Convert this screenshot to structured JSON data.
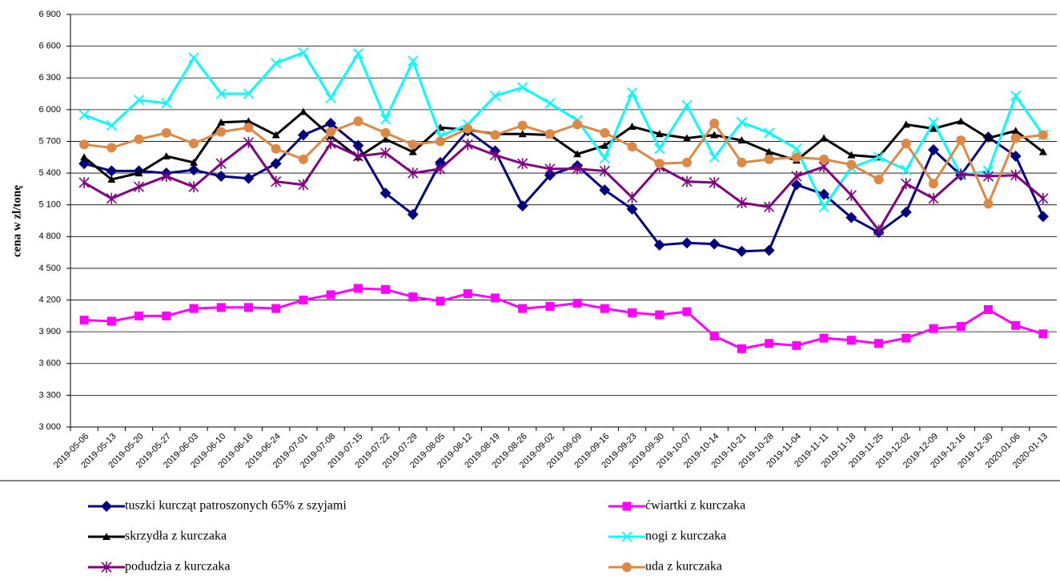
{
  "chart_data": {
    "type": "line",
    "y_label": "cena w zl/tonę",
    "categories": [
      "2019-05-06",
      "2019-05-13",
      "2019-05-20",
      "2019-05-27",
      "2019-06-03",
      "2019-06-10",
      "2019-06-16",
      "2019-06-24",
      "2019-07-01",
      "2019-07-08",
      "2019-07-15",
      "2019-07-22",
      "2019-07-29",
      "2019-08-05",
      "2019-08-12",
      "2019-08-19",
      "2019-08-26",
      "2019-09-02",
      "2019-09-09",
      "2019-09-16",
      "2019-09-23",
      "2019-09-30",
      "2019-10-07",
      "2019-10-14",
      "2019-10-21",
      "2019-10-28",
      "2019-11-04",
      "2019-11-11",
      "2019-11-18",
      "2019-11-25",
      "2019-12-02",
      "2019-12-09",
      "2019-12-16",
      "2019-12-30",
      "2020-01-06",
      "2020-01-13"
    ],
    "series": [
      {
        "name": "tuszki kurcząt patroszonych 65% z szyjami",
        "color": "#000080",
        "marker": "diamond",
        "values": [
          5490,
          5420,
          5420,
          5400,
          5430,
          5370,
          5350,
          5490,
          5760,
          5870,
          5660,
          5210,
          5010,
          5500,
          5800,
          5610,
          5090,
          5380,
          5470,
          5240,
          5060,
          4720,
          4740,
          4730,
          4660,
          4670,
          5290,
          5200,
          4980,
          4840,
          5030,
          5620,
          5380,
          5740,
          5560,
          4990
        ]
      },
      {
        "name": "ćwiartki z kurczaka",
        "color": "#ff00ff",
        "marker": "square",
        "values": [
          4010,
          4000,
          4050,
          4050,
          4120,
          4130,
          4130,
          4120,
          4200,
          4250,
          4310,
          4300,
          4230,
          4190,
          4260,
          4220,
          4120,
          4140,
          4170,
          4120,
          4080,
          4060,
          4090,
          3860,
          3740,
          3790,
          3770,
          3840,
          3820,
          3790,
          3840,
          3930,
          3950,
          4110,
          3960,
          3880
        ]
      },
      {
        "name": "skrzydła z kurczaka",
        "color": "#000000",
        "marker": "triangle",
        "values": [
          5550,
          5340,
          5400,
          5560,
          5500,
          5880,
          5890,
          5760,
          5980,
          5750,
          5550,
          5720,
          5600,
          5830,
          5810,
          5770,
          5770,
          5760,
          5580,
          5660,
          5840,
          5770,
          5730,
          5760,
          5710,
          5600,
          5520,
          5730,
          5570,
          5550,
          5860,
          5820,
          5890,
          5730,
          5800,
          5600
        ]
      },
      {
        "name": "nogi z kurczaka",
        "color": "#00ffff",
        "marker": "x",
        "values": [
          5950,
          5850,
          6090,
          6060,
          6490,
          6150,
          6150,
          6440,
          6540,
          6110,
          6530,
          5910,
          6460,
          5750,
          5860,
          6130,
          6210,
          6060,
          5900,
          5540,
          6160,
          5630,
          6040,
          5550,
          5880,
          5780,
          5630,
          5080,
          5450,
          5550,
          5430,
          5880,
          5380,
          5420,
          6130,
          5760
        ]
      },
      {
        "name": "podudzia z kurczaka",
        "color": "#800080",
        "marker": "star",
        "values": [
          5310,
          5160,
          5270,
          5370,
          5270,
          5490,
          5690,
          5320,
          5290,
          5680,
          5560,
          5590,
          5400,
          5440,
          5670,
          5570,
          5490,
          5440,
          5440,
          5420,
          5170,
          5460,
          5320,
          5310,
          5120,
          5080,
          5370,
          5460,
          5190,
          4860,
          5300,
          5160,
          5390,
          5370,
          5380,
          5160
        ]
      },
      {
        "name": "uda z kurczaka",
        "color": "#dd8844",
        "marker": "circle",
        "values": [
          5670,
          5640,
          5720,
          5780,
          5680,
          5790,
          5830,
          5630,
          5530,
          5790,
          5890,
          5780,
          5670,
          5700,
          5820,
          5760,
          5850,
          5770,
          5860,
          5780,
          5650,
          5490,
          5500,
          5870,
          5500,
          5530,
          5550,
          5530,
          5480,
          5340,
          5680,
          5300,
          5710,
          5110,
          5730,
          5760
        ]
      }
    ],
    "ylim": [
      3000,
      6900
    ],
    "yticks": [
      {
        "value": 3000,
        "label": "3 000"
      },
      {
        "value": 3300,
        "label": "3 300"
      },
      {
        "value": 3600,
        "label": "3 600"
      },
      {
        "value": 3900,
        "label": "3 900"
      },
      {
        "value": 4200,
        "label": "4 200"
      },
      {
        "value": 4500,
        "label": "4 500"
      },
      {
        "value": 4800,
        "label": "4 800"
      },
      {
        "value": 5100,
        "label": "5 100"
      },
      {
        "value": 5400,
        "label": "5 400"
      },
      {
        "value": 5700,
        "label": "5 700"
      },
      {
        "value": 6000,
        "label": "6 000"
      },
      {
        "value": 6300,
        "label": "6 300"
      },
      {
        "value": 6600,
        "label": "6 600"
      },
      {
        "value": 6900,
        "label": "6 900"
      }
    ],
    "grid": true
  }
}
